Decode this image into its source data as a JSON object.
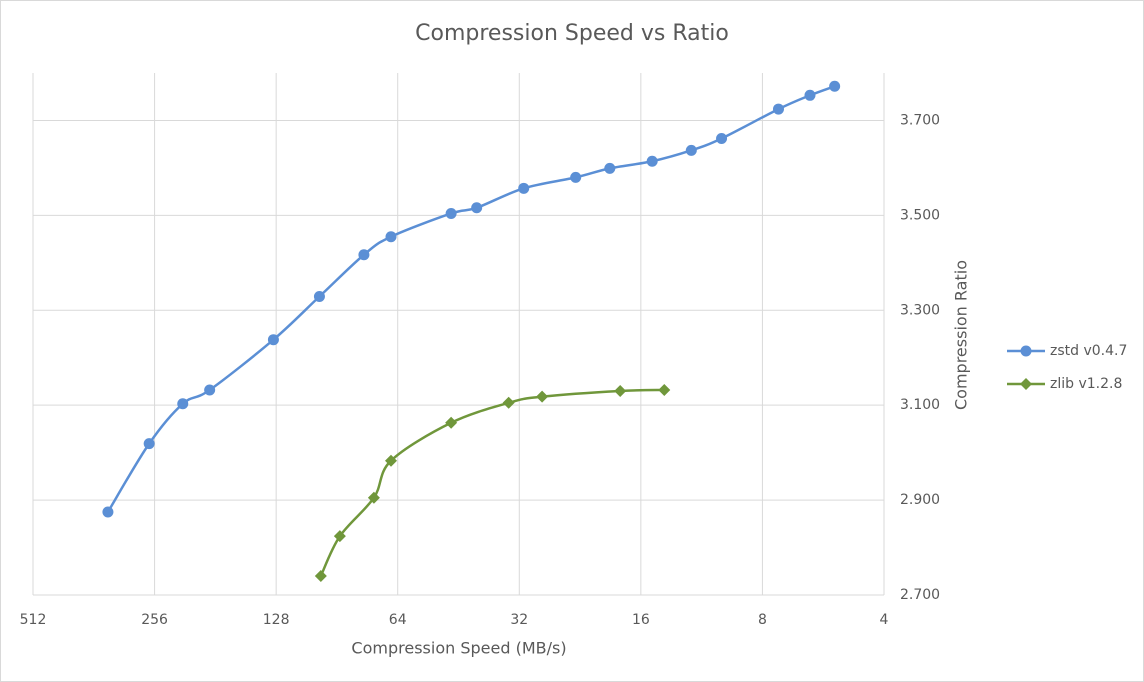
{
  "chart_data": {
    "type": "line",
    "title": "Compression Speed vs Ratio",
    "x_label": "Compression Speed (MB/s)",
    "y_label": "Compression Ratio",
    "xscale": "log",
    "xlim": [
      512,
      4
    ],
    "xticks": [
      512,
      256,
      128,
      64,
      32,
      16,
      8,
      4
    ],
    "ylim": [
      2.7,
      3.8
    ],
    "yticks": [
      {
        "value": 2.7,
        "label": "2.700"
      },
      {
        "value": 2.9,
        "label": "2.900"
      },
      {
        "value": 3.1,
        "label": "3.100"
      },
      {
        "value": 3.3,
        "label": "3.300"
      },
      {
        "value": 3.5,
        "label": "3.500"
      },
      {
        "value": 3.7,
        "label": "3.700"
      }
    ],
    "y_axis_side": "right",
    "grid": true,
    "smooth": true,
    "legend": "right",
    "series": [
      {
        "name": "zstd v0.4.7",
        "color": "#5b8fd5",
        "marker": "circle",
        "x": [
          334,
          264,
          218,
          187,
          130,
          100,
          77.6,
          66.5,
          47.2,
          40.8,
          31.2,
          23.2,
          19.1,
          15.0,
          12.0,
          10.1,
          7.3,
          6.1,
          5.3
        ],
        "values": [
          2.875,
          3.019,
          3.103,
          3.132,
          3.238,
          3.329,
          3.417,
          3.455,
          3.504,
          3.516,
          3.557,
          3.58,
          3.599,
          3.614,
          3.637,
          3.662,
          3.724,
          3.753,
          3.772
        ]
      },
      {
        "name": "zlib v1.2.8",
        "color": "#70973b",
        "marker": "diamond",
        "x": [
          99.2,
          89,
          73.3,
          66.5,
          47.2,
          34,
          28.1,
          18.0,
          14.0
        ],
        "values": [
          2.74,
          2.824,
          2.905,
          2.983,
          3.063,
          3.105,
          3.118,
          3.13,
          3.132
        ]
      }
    ]
  }
}
